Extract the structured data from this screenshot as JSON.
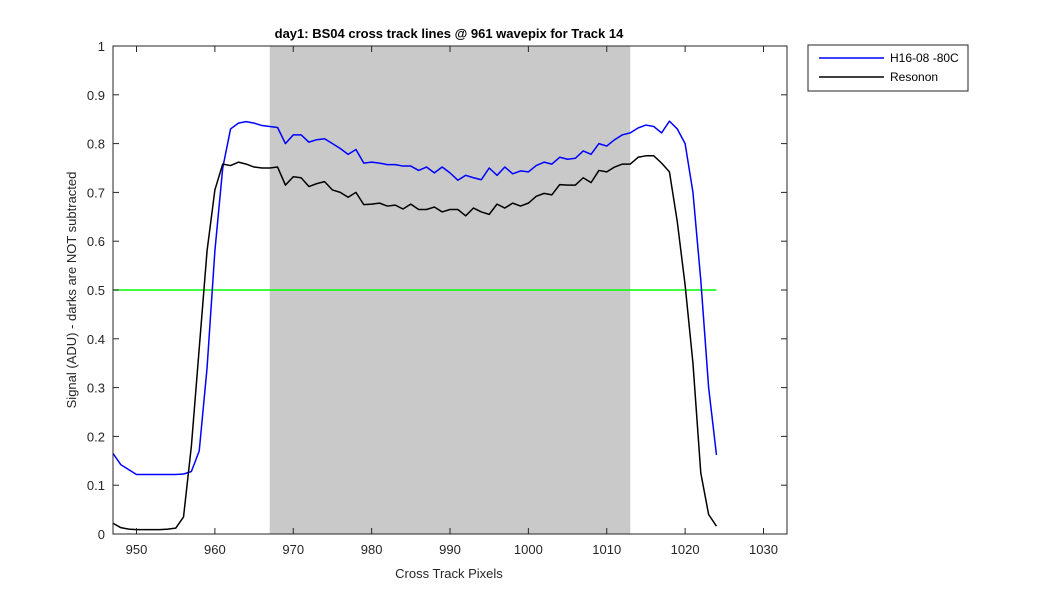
{
  "chart_data": {
    "type": "line",
    "title": "day1: BS04  cross track lines @ 961 wavepix for Track 14",
    "xlabel": "Cross Track Pixels",
    "ylabel": "Signal (ADU) - darks are NOT subtracted",
    "xlim": [
      947,
      1033
    ],
    "ylim": [
      0,
      1
    ],
    "xticks": [
      950,
      960,
      970,
      980,
      990,
      1000,
      1010,
      1020,
      1030
    ],
    "yticks": [
      0,
      0.1,
      0.2,
      0.3,
      0.4,
      0.5,
      0.6,
      0.7,
      0.8,
      0.9,
      1
    ],
    "ytick_labels": [
      "0",
      "0.1",
      "0.2",
      "0.3",
      "0.4",
      "0.5",
      "0.6",
      "0.7",
      "0.8",
      "0.9",
      "1"
    ],
    "grid": false,
    "legend_placement": "outside-top-right",
    "shaded_region": {
      "x": [
        967,
        1013
      ],
      "color": "#c9c9c9"
    },
    "reference_line": {
      "y": 0.5,
      "x": [
        947,
        1024
      ],
      "color": "#00ff00"
    },
    "series": [
      {
        "name": "H16-08 -80C",
        "color": "#0000ff",
        "x": [
          947,
          948,
          949,
          950,
          951,
          952,
          953,
          954,
          955,
          956,
          957,
          958,
          959,
          960,
          961,
          962,
          963,
          964,
          965,
          966,
          967,
          968,
          969,
          970,
          971,
          972,
          973,
          974,
          975,
          976,
          977,
          978,
          979,
          980,
          981,
          982,
          983,
          984,
          985,
          986,
          987,
          988,
          989,
          990,
          991,
          992,
          993,
          994,
          995,
          996,
          997,
          998,
          999,
          1000,
          1001,
          1002,
          1003,
          1004,
          1005,
          1006,
          1007,
          1008,
          1009,
          1010,
          1011,
          1012,
          1013,
          1014,
          1015,
          1016,
          1017,
          1018,
          1019,
          1020,
          1021,
          1022,
          1023,
          1024
        ],
        "values": [
          0.165,
          0.142,
          0.132,
          0.122,
          0.122,
          0.122,
          0.122,
          0.122,
          0.122,
          0.123,
          0.128,
          0.17,
          0.34,
          0.58,
          0.75,
          0.83,
          0.842,
          0.845,
          0.842,
          0.837,
          0.835,
          0.833,
          0.8,
          0.818,
          0.818,
          0.803,
          0.808,
          0.81,
          0.8,
          0.79,
          0.778,
          0.788,
          0.76,
          0.762,
          0.76,
          0.757,
          0.757,
          0.754,
          0.754,
          0.745,
          0.752,
          0.74,
          0.752,
          0.74,
          0.725,
          0.735,
          0.73,
          0.726,
          0.75,
          0.735,
          0.752,
          0.738,
          0.744,
          0.742,
          0.755,
          0.762,
          0.758,
          0.772,
          0.768,
          0.77,
          0.785,
          0.778,
          0.8,
          0.795,
          0.808,
          0.818,
          0.822,
          0.832,
          0.838,
          0.835,
          0.822,
          0.846,
          0.83,
          0.8,
          0.7,
          0.52,
          0.3,
          0.162
        ]
      },
      {
        "name": "Resonon",
        "color": "#000000",
        "x": [
          947,
          948,
          949,
          950,
          951,
          952,
          953,
          954,
          955,
          956,
          957,
          958,
          959,
          960,
          961,
          962,
          963,
          964,
          965,
          966,
          967,
          968,
          969,
          970,
          971,
          972,
          973,
          974,
          975,
          976,
          977,
          978,
          979,
          980,
          981,
          982,
          983,
          984,
          985,
          986,
          987,
          988,
          989,
          990,
          991,
          992,
          993,
          994,
          995,
          996,
          997,
          998,
          999,
          1000,
          1001,
          1002,
          1003,
          1004,
          1005,
          1006,
          1007,
          1008,
          1009,
          1010,
          1011,
          1012,
          1013,
          1014,
          1015,
          1016,
          1017,
          1018,
          1019,
          1020,
          1021,
          1022,
          1023,
          1024
        ],
        "values": [
          0.022,
          0.013,
          0.01,
          0.009,
          0.009,
          0.009,
          0.009,
          0.01,
          0.012,
          0.035,
          0.18,
          0.38,
          0.58,
          0.705,
          0.758,
          0.755,
          0.762,
          0.758,
          0.752,
          0.75,
          0.75,
          0.752,
          0.715,
          0.732,
          0.73,
          0.712,
          0.718,
          0.722,
          0.705,
          0.7,
          0.69,
          0.7,
          0.675,
          0.676,
          0.678,
          0.672,
          0.674,
          0.666,
          0.676,
          0.665,
          0.665,
          0.67,
          0.66,
          0.665,
          0.665,
          0.652,
          0.668,
          0.66,
          0.655,
          0.676,
          0.668,
          0.678,
          0.672,
          0.678,
          0.692,
          0.698,
          0.695,
          0.716,
          0.715,
          0.715,
          0.73,
          0.72,
          0.745,
          0.742,
          0.752,
          0.758,
          0.758,
          0.772,
          0.775,
          0.775,
          0.76,
          0.742,
          0.64,
          0.51,
          0.35,
          0.125,
          0.04,
          0.016
        ]
      }
    ]
  }
}
